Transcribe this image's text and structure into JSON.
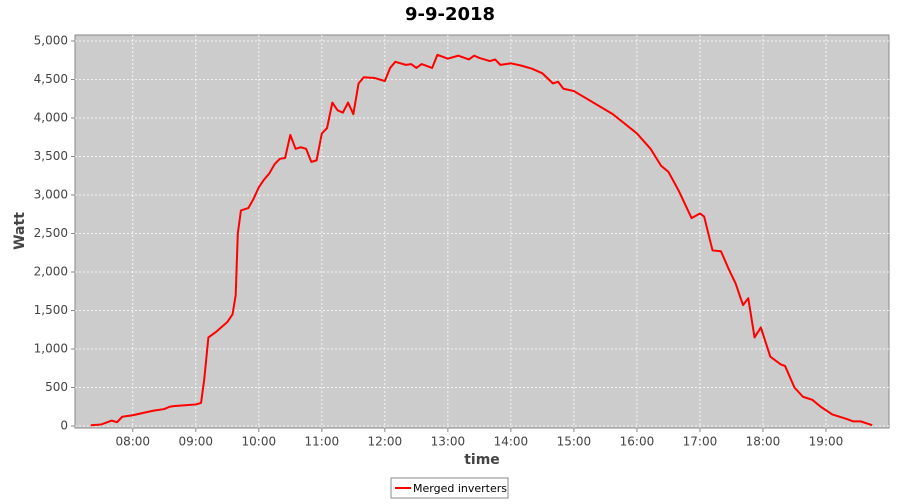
{
  "chart_data": {
    "type": "line",
    "title": "9-9-2018",
    "x_label": "time",
    "y_label": "Watt",
    "x": [
      "07:20",
      "07:30",
      "07:40",
      "07:45",
      "07:50",
      "08:00",
      "08:10",
      "08:20",
      "08:30",
      "08:35",
      "08:40",
      "08:50",
      "09:00",
      "09:05",
      "09:08",
      "09:12",
      "09:15",
      "09:20",
      "09:30",
      "09:35",
      "09:38",
      "09:40",
      "09:43",
      "09:50",
      "09:55",
      "10:00",
      "10:05",
      "10:10",
      "10:15",
      "10:20",
      "10:25",
      "10:30",
      "10:35",
      "10:40",
      "10:45",
      "10:50",
      "10:55",
      "11:00",
      "11:05",
      "11:10",
      "11:15",
      "11:20",
      "11:25",
      "11:30",
      "11:35",
      "11:40",
      "11:50",
      "12:00",
      "12:05",
      "12:10",
      "12:20",
      "12:25",
      "12:30",
      "12:35",
      "12:45",
      "12:50",
      "13:00",
      "13:10",
      "13:20",
      "13:25",
      "13:30",
      "13:40",
      "13:45",
      "13:50",
      "14:00",
      "14:10",
      "14:20",
      "14:30",
      "14:40",
      "14:45",
      "14:50",
      "15:00",
      "15:37",
      "16:00",
      "16:13",
      "16:23",
      "16:30",
      "16:40",
      "16:52",
      "17:00",
      "17:04",
      "17:12",
      "17:20",
      "17:27",
      "17:34",
      "17:41",
      "17:46",
      "17:52",
      "17:58",
      "18:07",
      "18:17",
      "18:21",
      "18:30",
      "18:38",
      "18:47",
      "18:55",
      "19:06",
      "19:20",
      "19:26",
      "19:33",
      "19:44"
    ],
    "series": [
      {
        "name": "Merged inverters",
        "color": "#ff0000",
        "values": [
          10,
          20,
          70,
          50,
          120,
          140,
          170,
          200,
          220,
          250,
          260,
          270,
          280,
          300,
          600,
          1150,
          1180,
          1230,
          1350,
          1450,
          1700,
          2500,
          2800,
          2830,
          2950,
          3100,
          3200,
          3280,
          3400,
          3470,
          3480,
          3780,
          3600,
          3620,
          3600,
          3430,
          3450,
          3800,
          3870,
          4200,
          4100,
          4070,
          4200,
          4050,
          4450,
          4530,
          4520,
          4480,
          4650,
          4730,
          4690,
          4700,
          4650,
          4700,
          4650,
          4820,
          4770,
          4810,
          4760,
          4810,
          4780,
          4740,
          4760,
          4690,
          4710,
          4680,
          4640,
          4580,
          4450,
          4470,
          4380,
          4350,
          4050,
          3800,
          3600,
          3380,
          3300,
          3050,
          2700,
          2760,
          2720,
          2280,
          2270,
          2050,
          1850,
          1570,
          1660,
          1150,
          1280,
          900,
          800,
          780,
          500,
          380,
          340,
          250,
          150,
          90,
          60,
          60,
          10
        ]
      }
    ],
    "xlim": [
      "07:05",
      "20:00"
    ],
    "xticks": [
      "08:00",
      "09:00",
      "10:00",
      "11:00",
      "12:00",
      "13:00",
      "14:00",
      "15:00",
      "16:00",
      "17:00",
      "18:00",
      "19:00"
    ],
    "ylim": [
      -26,
      5078
    ],
    "yticks": [
      0,
      500,
      {
        "value": 1000,
        "label": "1,000"
      },
      {
        "value": 1500,
        "label": "1,500"
      },
      {
        "value": 2000,
        "label": "2,000"
      },
      {
        "value": 2500,
        "label": "2,500"
      },
      {
        "value": 3000,
        "label": "3,000"
      },
      {
        "value": 3500,
        "label": "3,500"
      },
      {
        "value": 4000,
        "label": "4,000"
      },
      {
        "value": 4500,
        "label": "4,500"
      },
      {
        "value": 5000,
        "label": "5,000"
      }
    ],
    "grid": true,
    "legend": "bottom"
  }
}
